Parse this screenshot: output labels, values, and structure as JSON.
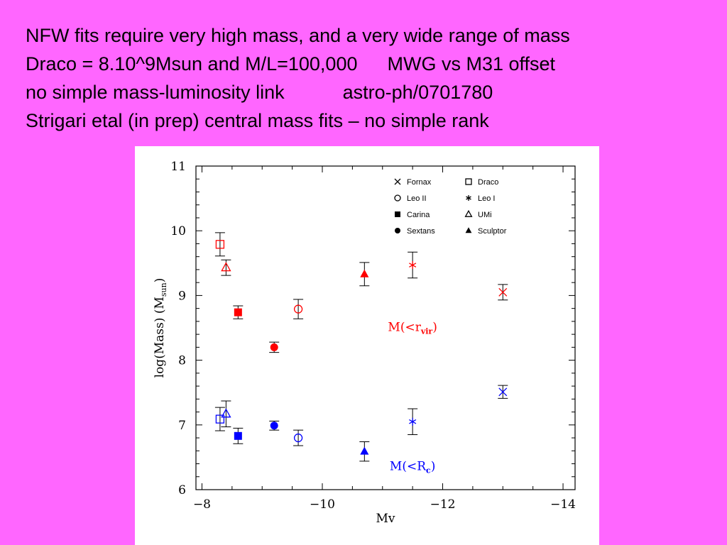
{
  "slide": {
    "background": "#ff66ff",
    "lines": [
      [
        "NFW fits require very high mass, and a very wide range of mass"
      ],
      [
        "Draco = 8.10^9Msun and M/L=100,000",
        "MWG vs M31 offset"
      ],
      [
        "no simple mass-luminosity link",
        "astro-ph/0701780"
      ],
      [
        "Strigari etal (in prep) central mass fits – no simple rank"
      ]
    ]
  },
  "chart_data": {
    "type": "scatter",
    "title": "",
    "xlabel": "Mv",
    "ylabel": "log(Mass)  (M",
    "ylabel_sub": "sun",
    "ylabel_close": ")",
    "xlim": [
      -7.9,
      -14.2
    ],
    "ylim": [
      6,
      11
    ],
    "xticks": [
      -8,
      -10,
      -12,
      -14
    ],
    "xtick_labels": [
      "−8",
      "−10",
      "−12",
      "−14"
    ],
    "yticks": [
      6,
      7,
      8,
      9,
      10,
      11
    ],
    "ytick_labels": [
      "6",
      "7",
      "8",
      "9",
      "10",
      "11"
    ],
    "grid": false,
    "legend_position": "top-right",
    "legend": [
      {
        "name": "Fornax",
        "marker": "x"
      },
      {
        "name": "Draco",
        "marker": "square-open"
      },
      {
        "name": "Leo II",
        "marker": "circle-open"
      },
      {
        "name": "Leo I",
        "marker": "star"
      },
      {
        "name": "Carina",
        "marker": "square-filled"
      },
      {
        "name": "UMi",
        "marker": "triangle-open"
      },
      {
        "name": "Sextans",
        "marker": "circle-filled"
      },
      {
        "name": "Sculptor",
        "marker": "triangle-filled"
      }
    ],
    "annotations": [
      {
        "text": "M(<r",
        "sub": "vir",
        "close": ")",
        "color": "#ff0000",
        "x": -11.5,
        "y": 8.45
      },
      {
        "text": "M(<R",
        "sub": "c",
        "close": ")",
        "color": "#0000ff",
        "x": -11.5,
        "y": 6.3
      }
    ],
    "series": [
      {
        "name": "M(<rvir)",
        "color": "#ff0000",
        "points": [
          {
            "galaxy": "Draco",
            "x": -8.3,
            "y": 9.79,
            "err": 0.18,
            "marker": "square-open"
          },
          {
            "galaxy": "UMi",
            "x": -8.4,
            "y": 9.43,
            "err": 0.12,
            "marker": "triangle-open"
          },
          {
            "galaxy": "Carina",
            "x": -8.6,
            "y": 8.74,
            "err": 0.1,
            "marker": "square-filled"
          },
          {
            "galaxy": "Sextans",
            "x": -9.2,
            "y": 8.2,
            "err": 0.08,
            "marker": "circle-filled"
          },
          {
            "galaxy": "Leo II",
            "x": -9.6,
            "y": 8.79,
            "err": 0.15,
            "marker": "circle-open"
          },
          {
            "galaxy": "Sculptor",
            "x": -10.7,
            "y": 9.33,
            "err": 0.18,
            "marker": "triangle-filled"
          },
          {
            "galaxy": "Leo I",
            "x": -11.5,
            "y": 9.47,
            "err": 0.2,
            "marker": "star"
          },
          {
            "galaxy": "Fornax",
            "x": -13.0,
            "y": 9.05,
            "err": 0.12,
            "marker": "x"
          }
        ]
      },
      {
        "name": "M(<Rc)",
        "color": "#0000ff",
        "points": [
          {
            "galaxy": "Draco",
            "x": -8.3,
            "y": 7.09,
            "err": 0.18,
            "marker": "square-open"
          },
          {
            "galaxy": "UMi",
            "x": -8.4,
            "y": 7.17,
            "err": 0.2,
            "marker": "triangle-open"
          },
          {
            "galaxy": "Carina",
            "x": -8.6,
            "y": 6.83,
            "err": 0.12,
            "marker": "square-filled"
          },
          {
            "galaxy": "Sextans",
            "x": -9.2,
            "y": 6.99,
            "err": 0.07,
            "marker": "circle-filled"
          },
          {
            "galaxy": "Leo II",
            "x": -9.6,
            "y": 6.8,
            "err": 0.12,
            "marker": "circle-open"
          },
          {
            "galaxy": "Sculptor",
            "x": -10.7,
            "y": 6.59,
            "err": 0.15,
            "marker": "triangle-filled"
          },
          {
            "galaxy": "Leo I",
            "x": -11.5,
            "y": 7.05,
            "err": 0.2,
            "marker": "star"
          },
          {
            "galaxy": "Fornax",
            "x": -13.0,
            "y": 7.51,
            "err": 0.1,
            "marker": "x"
          }
        ]
      }
    ]
  }
}
